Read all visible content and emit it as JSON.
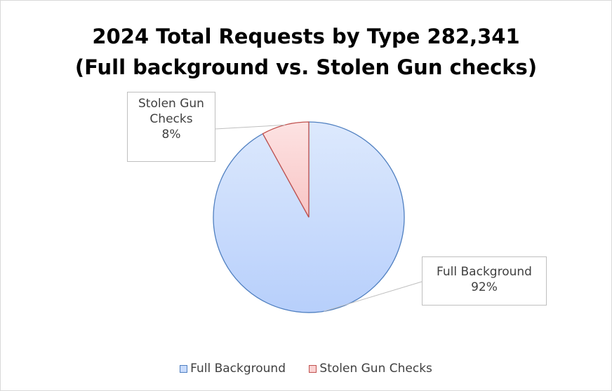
{
  "chart_data": {
    "type": "pie",
    "title": "2024 Total Requests by Type 282,341",
    "subtitle": "(Full background vs. Stolen Gun checks)",
    "categories": [
      "Full Background",
      "Stolen Gun Checks"
    ],
    "values": [
      92,
      8
    ],
    "value_unit": "%",
    "data_labels": [
      {
        "category": "Full Background",
        "line1": "Full Background",
        "line2": "92%"
      },
      {
        "category": "Stolen Gun Checks",
        "line1": "Stolen Gun",
        "line2": "Checks",
        "line3": "8%"
      }
    ],
    "legend_position": "bottom",
    "colors": {
      "Full Background": {
        "fill": "#c9dcfd",
        "stroke": "#4f7fc0"
      },
      "Stolen Gun Checks": {
        "fill": "#fbd3d3",
        "stroke": "#c0504d"
      }
    }
  }
}
